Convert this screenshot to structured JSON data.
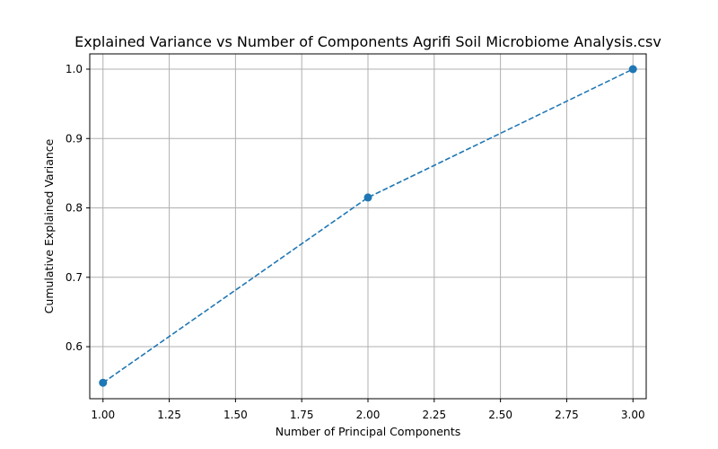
{
  "chart_data": {
    "type": "line",
    "title": "Explained Variance vs Number of Components Agrifi Soil Microbiome Analysis.csv",
    "xlabel": "Number of Principal Components",
    "ylabel": "Cumulative Explained Variance",
    "x": [
      1,
      2,
      3
    ],
    "series": [
      {
        "values": [
          0.548,
          0.815,
          1.0
        ],
        "color": "#1f77b4",
        "line_style": "dashed",
        "marker": "circle"
      }
    ],
    "xlim": [
      0.95,
      3.05
    ],
    "ylim": [
      0.525,
      1.022
    ],
    "x_ticks": [
      "1.00",
      "1.25",
      "1.50",
      "1.75",
      "2.00",
      "2.25",
      "2.50",
      "2.75",
      "3.00"
    ],
    "y_ticks": [
      "0.6",
      "0.7",
      "0.8",
      "0.9",
      "1.0"
    ],
    "grid": true
  }
}
